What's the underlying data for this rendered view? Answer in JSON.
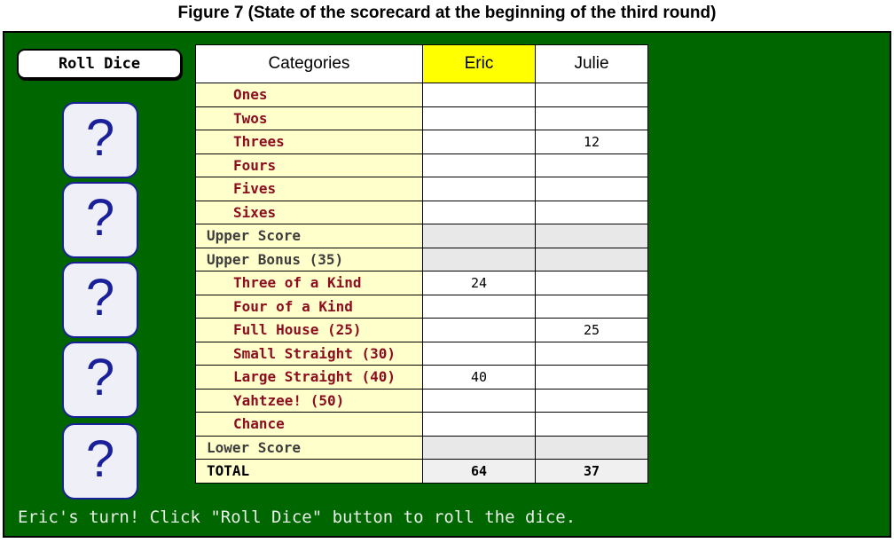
{
  "figure_title": "Figure 7 (State of the scorecard at the beginning of the third round)",
  "roll_button_label": "Roll Dice",
  "dice": [
    "?",
    "?",
    "?",
    "?",
    "?"
  ],
  "table": {
    "header_category": "Categories",
    "players": [
      "Eric",
      "Julie"
    ],
    "active_player_index": 0,
    "rows": [
      {
        "label": "Ones",
        "type": "scoring",
        "eric": "",
        "julie": ""
      },
      {
        "label": "Twos",
        "type": "scoring",
        "eric": "",
        "julie": ""
      },
      {
        "label": "Threes",
        "type": "scoring",
        "eric": "",
        "julie": "12"
      },
      {
        "label": "Fours",
        "type": "scoring",
        "eric": "",
        "julie": ""
      },
      {
        "label": "Fives",
        "type": "scoring",
        "eric": "",
        "julie": ""
      },
      {
        "label": "Sixes",
        "type": "scoring",
        "eric": "",
        "julie": ""
      },
      {
        "label": "Upper Score",
        "type": "summary",
        "eric": "",
        "julie": ""
      },
      {
        "label": "Upper Bonus (35)",
        "type": "summary",
        "eric": "",
        "julie": ""
      },
      {
        "label": "Three of a Kind",
        "type": "scoring",
        "eric": "24",
        "julie": ""
      },
      {
        "label": "Four of a Kind",
        "type": "scoring",
        "eric": "",
        "julie": ""
      },
      {
        "label": "Full House (25)",
        "type": "scoring",
        "eric": "",
        "julie": "25"
      },
      {
        "label": "Small Straight (30)",
        "type": "scoring",
        "eric": "",
        "julie": ""
      },
      {
        "label": "Large Straight (40)",
        "type": "scoring",
        "eric": "40",
        "julie": ""
      },
      {
        "label": "Yahtzee! (50)",
        "type": "scoring",
        "eric": "",
        "julie": ""
      },
      {
        "label": "Chance",
        "type": "scoring",
        "eric": "",
        "julie": ""
      },
      {
        "label": "Lower Score",
        "type": "summary",
        "eric": "",
        "julie": ""
      },
      {
        "label": "TOTAL",
        "type": "total",
        "eric": "64",
        "julie": "37"
      }
    ]
  },
  "status_message": "Eric's turn! Click \"Roll Dice\" button to roll the dice.",
  "colors": {
    "board": "#006600",
    "active_header": "#ffff00",
    "category_bg": "#ffffcc",
    "category_text": "#8b0d1f",
    "die_border": "#1a1f9a"
  }
}
